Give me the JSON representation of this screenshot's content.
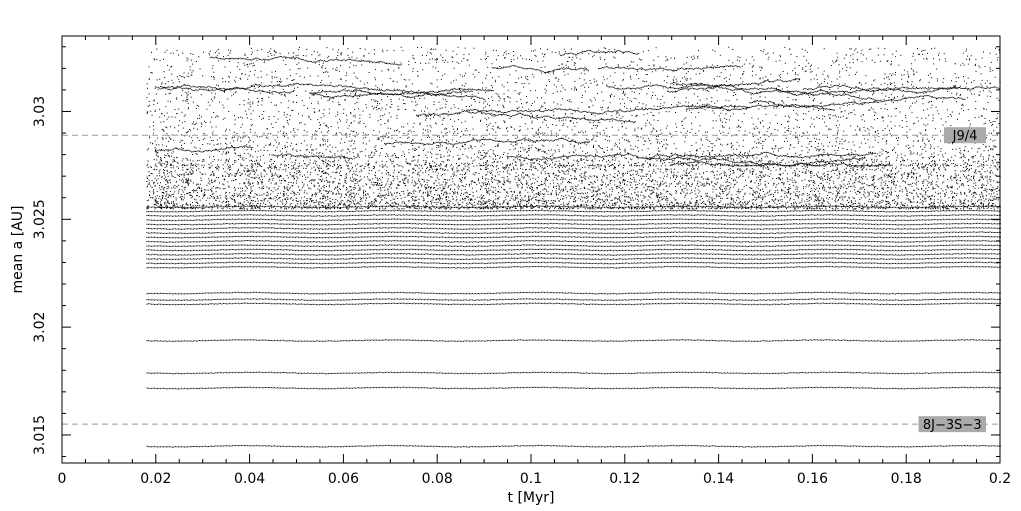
{
  "chart_data": {
    "type": "scatter",
    "xlabel": "t [Myr]",
    "ylabel": "mean a [AU]",
    "xlim": [
      0,
      0.2
    ],
    "ylim": [
      3.0137,
      3.0335
    ],
    "xticks": [
      0,
      0.02,
      0.04,
      0.06,
      0.08,
      0.1,
      0.12,
      0.14,
      0.16,
      0.18,
      0.2
    ],
    "xtick_labels": [
      "0",
      "0.02",
      "0.04",
      "0.06",
      "0.08",
      "0.1",
      "0.12",
      "0.14",
      "0.16",
      "0.18",
      "0.2"
    ],
    "yticks": [
      3.015,
      3.02,
      3.025,
      3.03
    ],
    "ytick_labels": [
      "3.015",
      "3.02",
      "3.025",
      "3.03"
    ],
    "grid": false,
    "colors": {
      "points": "#000000",
      "reference_line": "#999999",
      "label_bg": "#aaaaaa"
    },
    "time_range": [
      0.018,
      0.2
    ],
    "stable_tracks_a": [
      3.0145,
      3.0172,
      3.0179,
      3.0194,
      3.0211,
      3.0213,
      3.0216,
      3.0228,
      3.023,
      3.0232,
      3.0234,
      3.0236,
      3.0238,
      3.024,
      3.0242,
      3.0244,
      3.0246,
      3.0248,
      3.025,
      3.0252,
      3.0254,
      3.0256
    ],
    "diffusive_band_a": [
      3.0255,
      3.0275
    ],
    "chaotic_band_a": [
      3.0275,
      3.033
    ],
    "reference_lines": [
      {
        "name": "J9/4",
        "a": 3.0289,
        "label": "J9/4"
      },
      {
        "name": "8J-3S-3",
        "a": 3.0155,
        "label": "8J−3S−3"
      }
    ]
  }
}
